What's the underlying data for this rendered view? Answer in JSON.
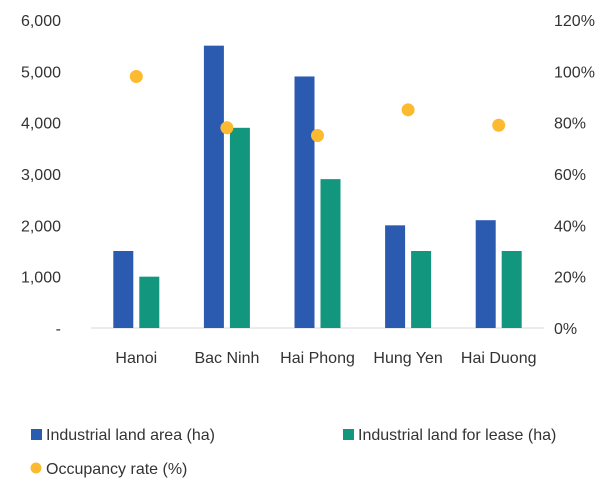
{
  "chart_data": {
    "type": "bar",
    "categories": [
      "Hanoi",
      "Bac Ninh",
      "Hai Phong",
      "Hung Yen",
      "Hai Duong"
    ],
    "series": [
      {
        "name": "Industrial land area (ha)",
        "type": "bar",
        "axis": "left",
        "color": "#2B5BB0",
        "values": [
          1500,
          5500,
          4900,
          2000,
          2100
        ]
      },
      {
        "name": "Industrial land for lease (ha)",
        "type": "bar",
        "axis": "left",
        "color": "#12967E",
        "values": [
          1000,
          3900,
          2900,
          1500,
          1500
        ]
      },
      {
        "name": "Occupancy rate (%)",
        "type": "scatter",
        "axis": "right",
        "color": "#FBBA2F",
        "values": [
          98,
          78,
          75,
          85,
          79
        ]
      }
    ],
    "y_left": {
      "min": 0,
      "max": 6000,
      "ticks": [
        "-",
        "1,000",
        "2,000",
        "3,000",
        "4,000",
        "5,000",
        "6,000"
      ]
    },
    "y_right": {
      "min": 0,
      "max": 120,
      "ticks": [
        "0%",
        "20%",
        "40%",
        "60%",
        "80%",
        "100%",
        "120%"
      ]
    },
    "grid": false,
    "legend_position": "bottom"
  }
}
